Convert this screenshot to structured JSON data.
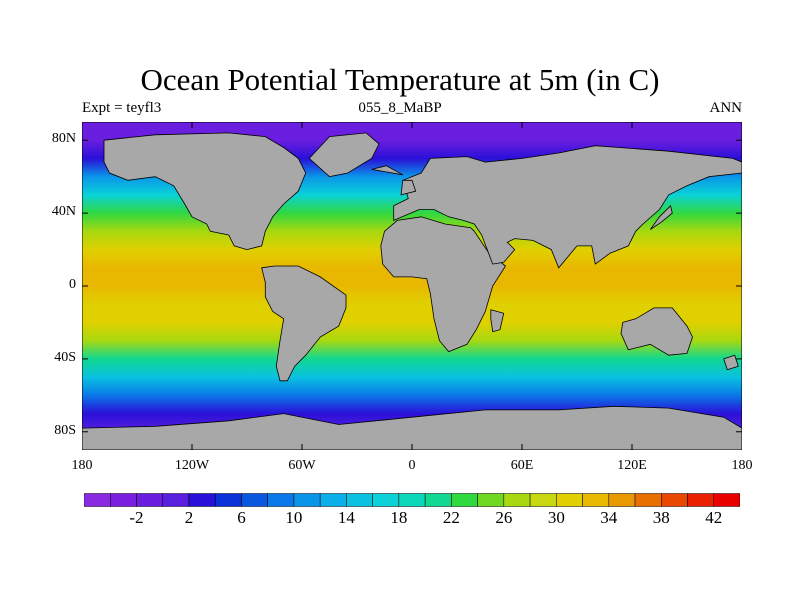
{
  "chart_data": {
    "type": "heatmap",
    "title": "Ocean Potential Temperature at 5m (in C)",
    "left_string": "Expt = teyfl3",
    "center_string": "055_8_MaBP",
    "right_string": "ANN",
    "x_ticks": [
      {
        "value": -180,
        "label": "180"
      },
      {
        "value": -120,
        "label": "120W"
      },
      {
        "value": -60,
        "label": "60W"
      },
      {
        "value": 0,
        "label": "0"
      },
      {
        "value": 60,
        "label": "60E"
      },
      {
        "value": 120,
        "label": "120E"
      },
      {
        "value": 180,
        "label": "180"
      }
    ],
    "y_ticks": [
      {
        "value": 80,
        "label": "80N"
      },
      {
        "value": 40,
        "label": "40N"
      },
      {
        "value": 0,
        "label": "0"
      },
      {
        "value": -40,
        "label": "40S"
      },
      {
        "value": -80,
        "label": "80S"
      }
    ],
    "xlim": [
      -180,
      180
    ],
    "ylim": [
      -90,
      90
    ],
    "colorbar": {
      "levels": [
        -4,
        -2,
        0,
        2,
        4,
        6,
        8,
        10,
        12,
        14,
        16,
        18,
        20,
        22,
        24,
        26,
        28,
        30,
        32,
        34,
        36,
        38,
        40,
        42
      ],
      "labels": [
        "-2",
        "2",
        "6",
        "10",
        "14",
        "18",
        "22",
        "26",
        "30",
        "34",
        "38",
        "42"
      ],
      "colors": [
        "#8a2be2",
        "#7a1fe0",
        "#6a1ee0",
        "#5a20e0",
        "#2a10d8",
        "#0a30d8",
        "#0a58e0",
        "#0a78e8",
        "#0a96e8",
        "#0aaee8",
        "#0ac2e0",
        "#0ad2d8",
        "#0ad8b8",
        "#10d890",
        "#30d840",
        "#70d820",
        "#a8d810",
        "#c8d810",
        "#e0d000",
        "#e8b800",
        "#e89800",
        "#e87000",
        "#e84800",
        "#e82000",
        "#e80000"
      ]
    },
    "profile": [
      {
        "lat": -90,
        "value": -1.8
      },
      {
        "lat": -80,
        "value": 0
      },
      {
        "lat": -70,
        "value": 3
      },
      {
        "lat": -60,
        "value": 8
      },
      {
        "lat": -50,
        "value": 15
      },
      {
        "lat": -40,
        "value": 20
      },
      {
        "lat": -30,
        "value": 26
      },
      {
        "lat": -20,
        "value": 30
      },
      {
        "lat": -10,
        "value": 31
      },
      {
        "lat": 0,
        "value": 32
      },
      {
        "lat": 10,
        "value": 32
      },
      {
        "lat": 20,
        "value": 30
      },
      {
        "lat": 30,
        "value": 27
      },
      {
        "lat": 40,
        "value": 22
      },
      {
        "lat": 50,
        "value": 16
      },
      {
        "lat": 60,
        "value": 10
      },
      {
        "lat": 70,
        "value": 3
      },
      {
        "lat": 80,
        "value": -1.5
      },
      {
        "lat": 90,
        "value": -1.8
      }
    ],
    "land_color": "#a8a8a8",
    "land": [
      [
        [
          -168,
          80
        ],
        [
          -140,
          83
        ],
        [
          -100,
          84
        ],
        [
          -80,
          82
        ],
        [
          -70,
          76
        ],
        [
          -62,
          70
        ],
        [
          -58,
          62
        ],
        [
          -62,
          52
        ],
        [
          -70,
          45
        ],
        [
          -76,
          38
        ],
        [
          -80,
          30
        ],
        [
          -82,
          22
        ],
        [
          -90,
          20
        ],
        [
          -97,
          22
        ],
        [
          -100,
          28
        ],
        [
          -110,
          30
        ],
        [
          -112,
          34
        ],
        [
          -120,
          38
        ],
        [
          -124,
          45
        ],
        [
          -130,
          55
        ],
        [
          -140,
          60
        ],
        [
          -155,
          58
        ],
        [
          -165,
          62
        ],
        [
          -168,
          68
        ]
      ],
      [
        [
          -82,
          10
        ],
        [
          -75,
          11
        ],
        [
          -62,
          11
        ],
        [
          -50,
          5
        ],
        [
          -36,
          -5
        ],
        [
          -36,
          -12
        ],
        [
          -40,
          -22
        ],
        [
          -50,
          -28
        ],
        [
          -58,
          -38
        ],
        [
          -64,
          -44
        ],
        [
          -68,
          -52
        ],
        [
          -72,
          -52
        ],
        [
          -74,
          -44
        ],
        [
          -72,
          -30
        ],
        [
          -70,
          -18
        ],
        [
          -76,
          -14
        ],
        [
          -80,
          -6
        ],
        [
          -80,
          2
        ]
      ],
      [
        [
          -56,
          70
        ],
        [
          -45,
          82
        ],
        [
          -25,
          84
        ],
        [
          -18,
          78
        ],
        [
          -22,
          70
        ],
        [
          -35,
          62
        ],
        [
          -45,
          60
        ]
      ],
      [
        [
          -17,
          22
        ],
        [
          -15,
          30
        ],
        [
          -8,
          36
        ],
        [
          5,
          38
        ],
        [
          18,
          34
        ],
        [
          32,
          32
        ],
        [
          34,
          30
        ],
        [
          42,
          18
        ],
        [
          51,
          11
        ],
        [
          44,
          0
        ],
        [
          40,
          -14
        ],
        [
          35,
          -24
        ],
        [
          30,
          -32
        ],
        [
          20,
          -36
        ],
        [
          15,
          -30
        ],
        [
          12,
          -18
        ],
        [
          10,
          -4
        ],
        [
          8,
          4
        ],
        [
          0,
          5
        ],
        [
          -10,
          5
        ],
        [
          -16,
          12
        ]
      ],
      [
        [
          -10,
          36
        ],
        [
          -10,
          44
        ],
        [
          -2,
          48
        ],
        [
          -5,
          58
        ],
        [
          5,
          62
        ],
        [
          10,
          70
        ],
        [
          30,
          71
        ],
        [
          40,
          68
        ],
        [
          60,
          70
        ],
        [
          80,
          73
        ],
        [
          100,
          77
        ],
        [
          140,
          74
        ],
        [
          175,
          70
        ],
        [
          180,
          68
        ],
        [
          180,
          62
        ],
        [
          162,
          60
        ],
        [
          150,
          55
        ],
        [
          140,
          50
        ],
        [
          135,
          42
        ],
        [
          126,
          34
        ],
        [
          122,
          30
        ],
        [
          118,
          22
        ],
        [
          108,
          18
        ],
        [
          100,
          12
        ],
        [
          98,
          22
        ],
        [
          90,
          22
        ],
        [
          80,
          10
        ],
        [
          76,
          20
        ],
        [
          66,
          25
        ],
        [
          56,
          26
        ],
        [
          52,
          24
        ],
        [
          56,
          20
        ],
        [
          50,
          13
        ],
        [
          44,
          12
        ],
        [
          38,
          28
        ],
        [
          34,
          34
        ],
        [
          28,
          36
        ],
        [
          20,
          38
        ],
        [
          12,
          42
        ],
        [
          4,
          42
        ]
      ],
      [
        [
          115,
          -20
        ],
        [
          122,
          -18
        ],
        [
          132,
          -12
        ],
        [
          142,
          -12
        ],
        [
          150,
          -22
        ],
        [
          153,
          -28
        ],
        [
          150,
          -37
        ],
        [
          140,
          -38
        ],
        [
          130,
          -32
        ],
        [
          118,
          -35
        ],
        [
          114,
          -26
        ]
      ],
      [
        [
          43,
          -13
        ],
        [
          50,
          -15
        ],
        [
          48,
          -24
        ],
        [
          44,
          -25
        ],
        [
          43,
          -18
        ]
      ],
      [
        [
          -180,
          -78
        ],
        [
          -140,
          -77
        ],
        [
          -100,
          -74
        ],
        [
          -70,
          -70
        ],
        [
          -40,
          -76
        ],
        [
          0,
          -72
        ],
        [
          40,
          -68
        ],
        [
          80,
          -68
        ],
        [
          110,
          -66
        ],
        [
          140,
          -67
        ],
        [
          170,
          -72
        ],
        [
          180,
          -78
        ],
        [
          180,
          -90
        ],
        [
          -180,
          -90
        ]
      ],
      [
        [
          170,
          -40
        ],
        [
          176,
          -38
        ],
        [
          178,
          -44
        ],
        [
          172,
          -46
        ]
      ],
      [
        [
          -6,
          50
        ],
        [
          2,
          52
        ],
        [
          0,
          58
        ],
        [
          -5,
          58
        ]
      ],
      [
        [
          -5,
          61
        ],
        [
          -14,
          66
        ],
        [
          -22,
          64
        ]
      ],
      [
        [
          130,
          31
        ],
        [
          136,
          35
        ],
        [
          142,
          40
        ],
        [
          141,
          44
        ],
        [
          135,
          38
        ]
      ]
    ]
  }
}
